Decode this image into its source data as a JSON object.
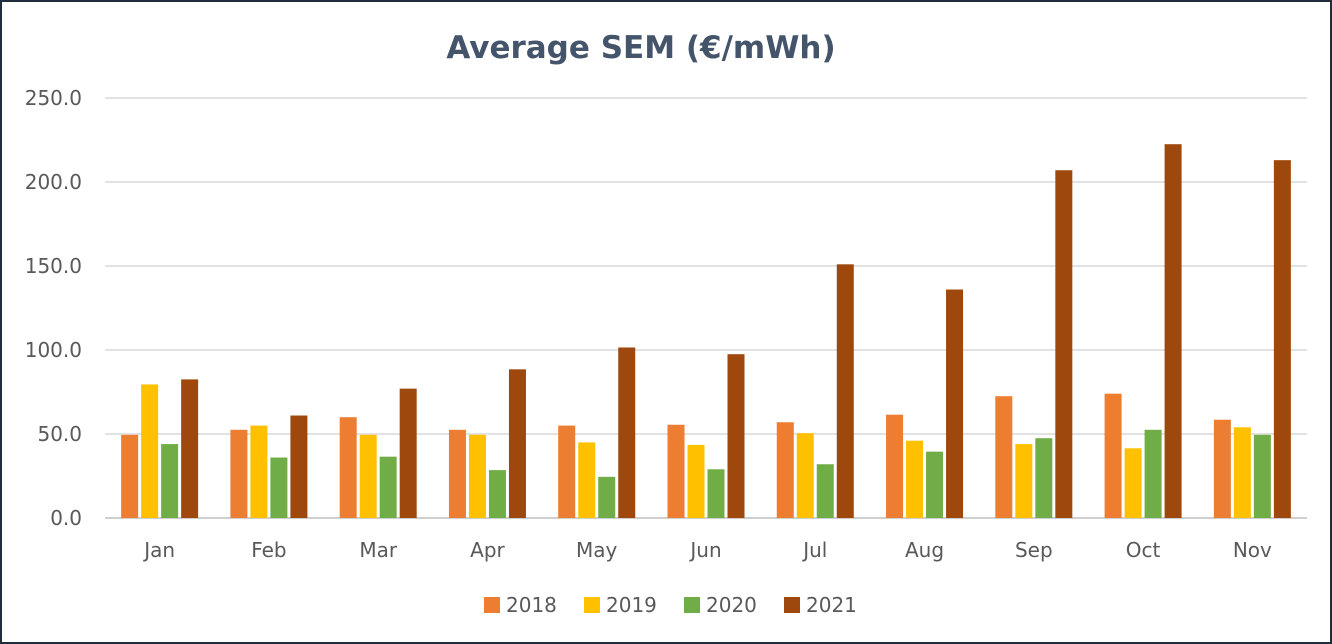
{
  "chart_data": {
    "type": "bar",
    "title": "Average SEM (€/mWh)",
    "xlabel": "",
    "ylabel": "",
    "ylim": [
      0,
      250
    ],
    "yticks": [
      0,
      50,
      100,
      150,
      200,
      250
    ],
    "ytick_labels": [
      "0.0",
      "50.0",
      "100.0",
      "150.0",
      "200.0",
      "250.0"
    ],
    "grid": true,
    "legend_position": "bottom",
    "categories": [
      "Jan",
      "Feb",
      "Mar",
      "Apr",
      "May",
      "Jun",
      "Jul",
      "Aug",
      "Sep",
      "Oct",
      "Nov"
    ],
    "series": [
      {
        "name": "2018",
        "color": "#ed7d31",
        "values": [
          49.5,
          52.5,
          60.0,
          52.5,
          55.0,
          55.5,
          57.0,
          61.5,
          72.5,
          74.0,
          58.5
        ]
      },
      {
        "name": "2019",
        "color": "#ffc000",
        "values": [
          79.5,
          55.0,
          49.5,
          49.5,
          45.0,
          43.5,
          50.5,
          46.0,
          44.0,
          41.5,
          54.0
        ]
      },
      {
        "name": "2020",
        "color": "#70ad47",
        "values": [
          44.0,
          36.0,
          36.5,
          28.5,
          24.5,
          29.0,
          32.0,
          39.5,
          47.5,
          52.5,
          49.5
        ]
      },
      {
        "name": "2021",
        "color": "#9e480e",
        "values": [
          82.5,
          61.0,
          77.0,
          88.5,
          101.5,
          97.5,
          151.0,
          136.0,
          207.0,
          222.5,
          213.0
        ]
      }
    ]
  }
}
